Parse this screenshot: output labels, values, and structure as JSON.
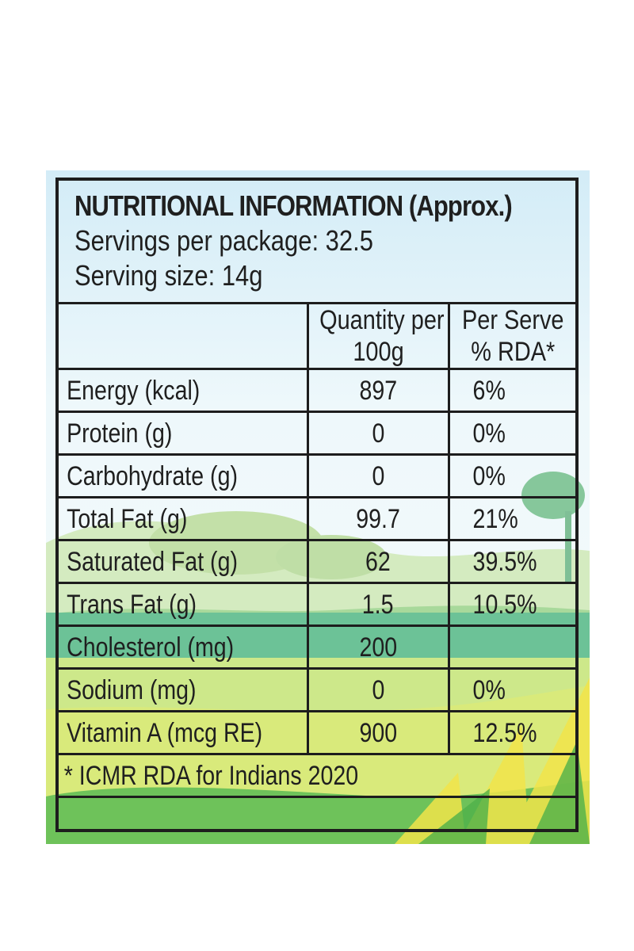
{
  "header": {
    "title": "NUTRITIONAL INFORMATION (Approx.)",
    "servings_per_package": "Servings per package: 32.5",
    "serving_size": "Serving size: 14g"
  },
  "columns": {
    "quantity_line1": "Quantity per",
    "quantity_line2": "100g",
    "rda_line1": "Per Serve",
    "rda_line2": "% RDA*"
  },
  "rows": [
    {
      "name": "Energy (kcal)",
      "qty": "897",
      "rda": "6%"
    },
    {
      "name": "Protein (g)",
      "qty": "0",
      "rda": "0%"
    },
    {
      "name": "Carbohydrate (g)",
      "qty": "0",
      "rda": "0%"
    },
    {
      "name": "Total Fat (g)",
      "qty": "99.7",
      "rda": "21%"
    },
    {
      "name": "Saturated Fat (g)",
      "qty": "62",
      "rda": "39.5%"
    },
    {
      "name": "Trans Fat (g)",
      "qty": "1.5",
      "rda": "10.5%"
    },
    {
      "name": "Cholesterol (mg)",
      "qty": "200",
      "rda": ""
    },
    {
      "name": "Sodium (mg)",
      "qty": "0",
      "rda": "0%"
    },
    {
      "name": "Vitamin A (mcg RE)",
      "qty": "900",
      "rda": "12.5%"
    }
  ],
  "footnote": "* ICMR RDA for Indians 2020",
  "colors": {
    "sky": "#e6f4fa",
    "hill_light": "#c8e3a6",
    "field_green": "#6cc297",
    "grass_yellow": "#d9ea7b",
    "border": "#1d1d1d"
  }
}
